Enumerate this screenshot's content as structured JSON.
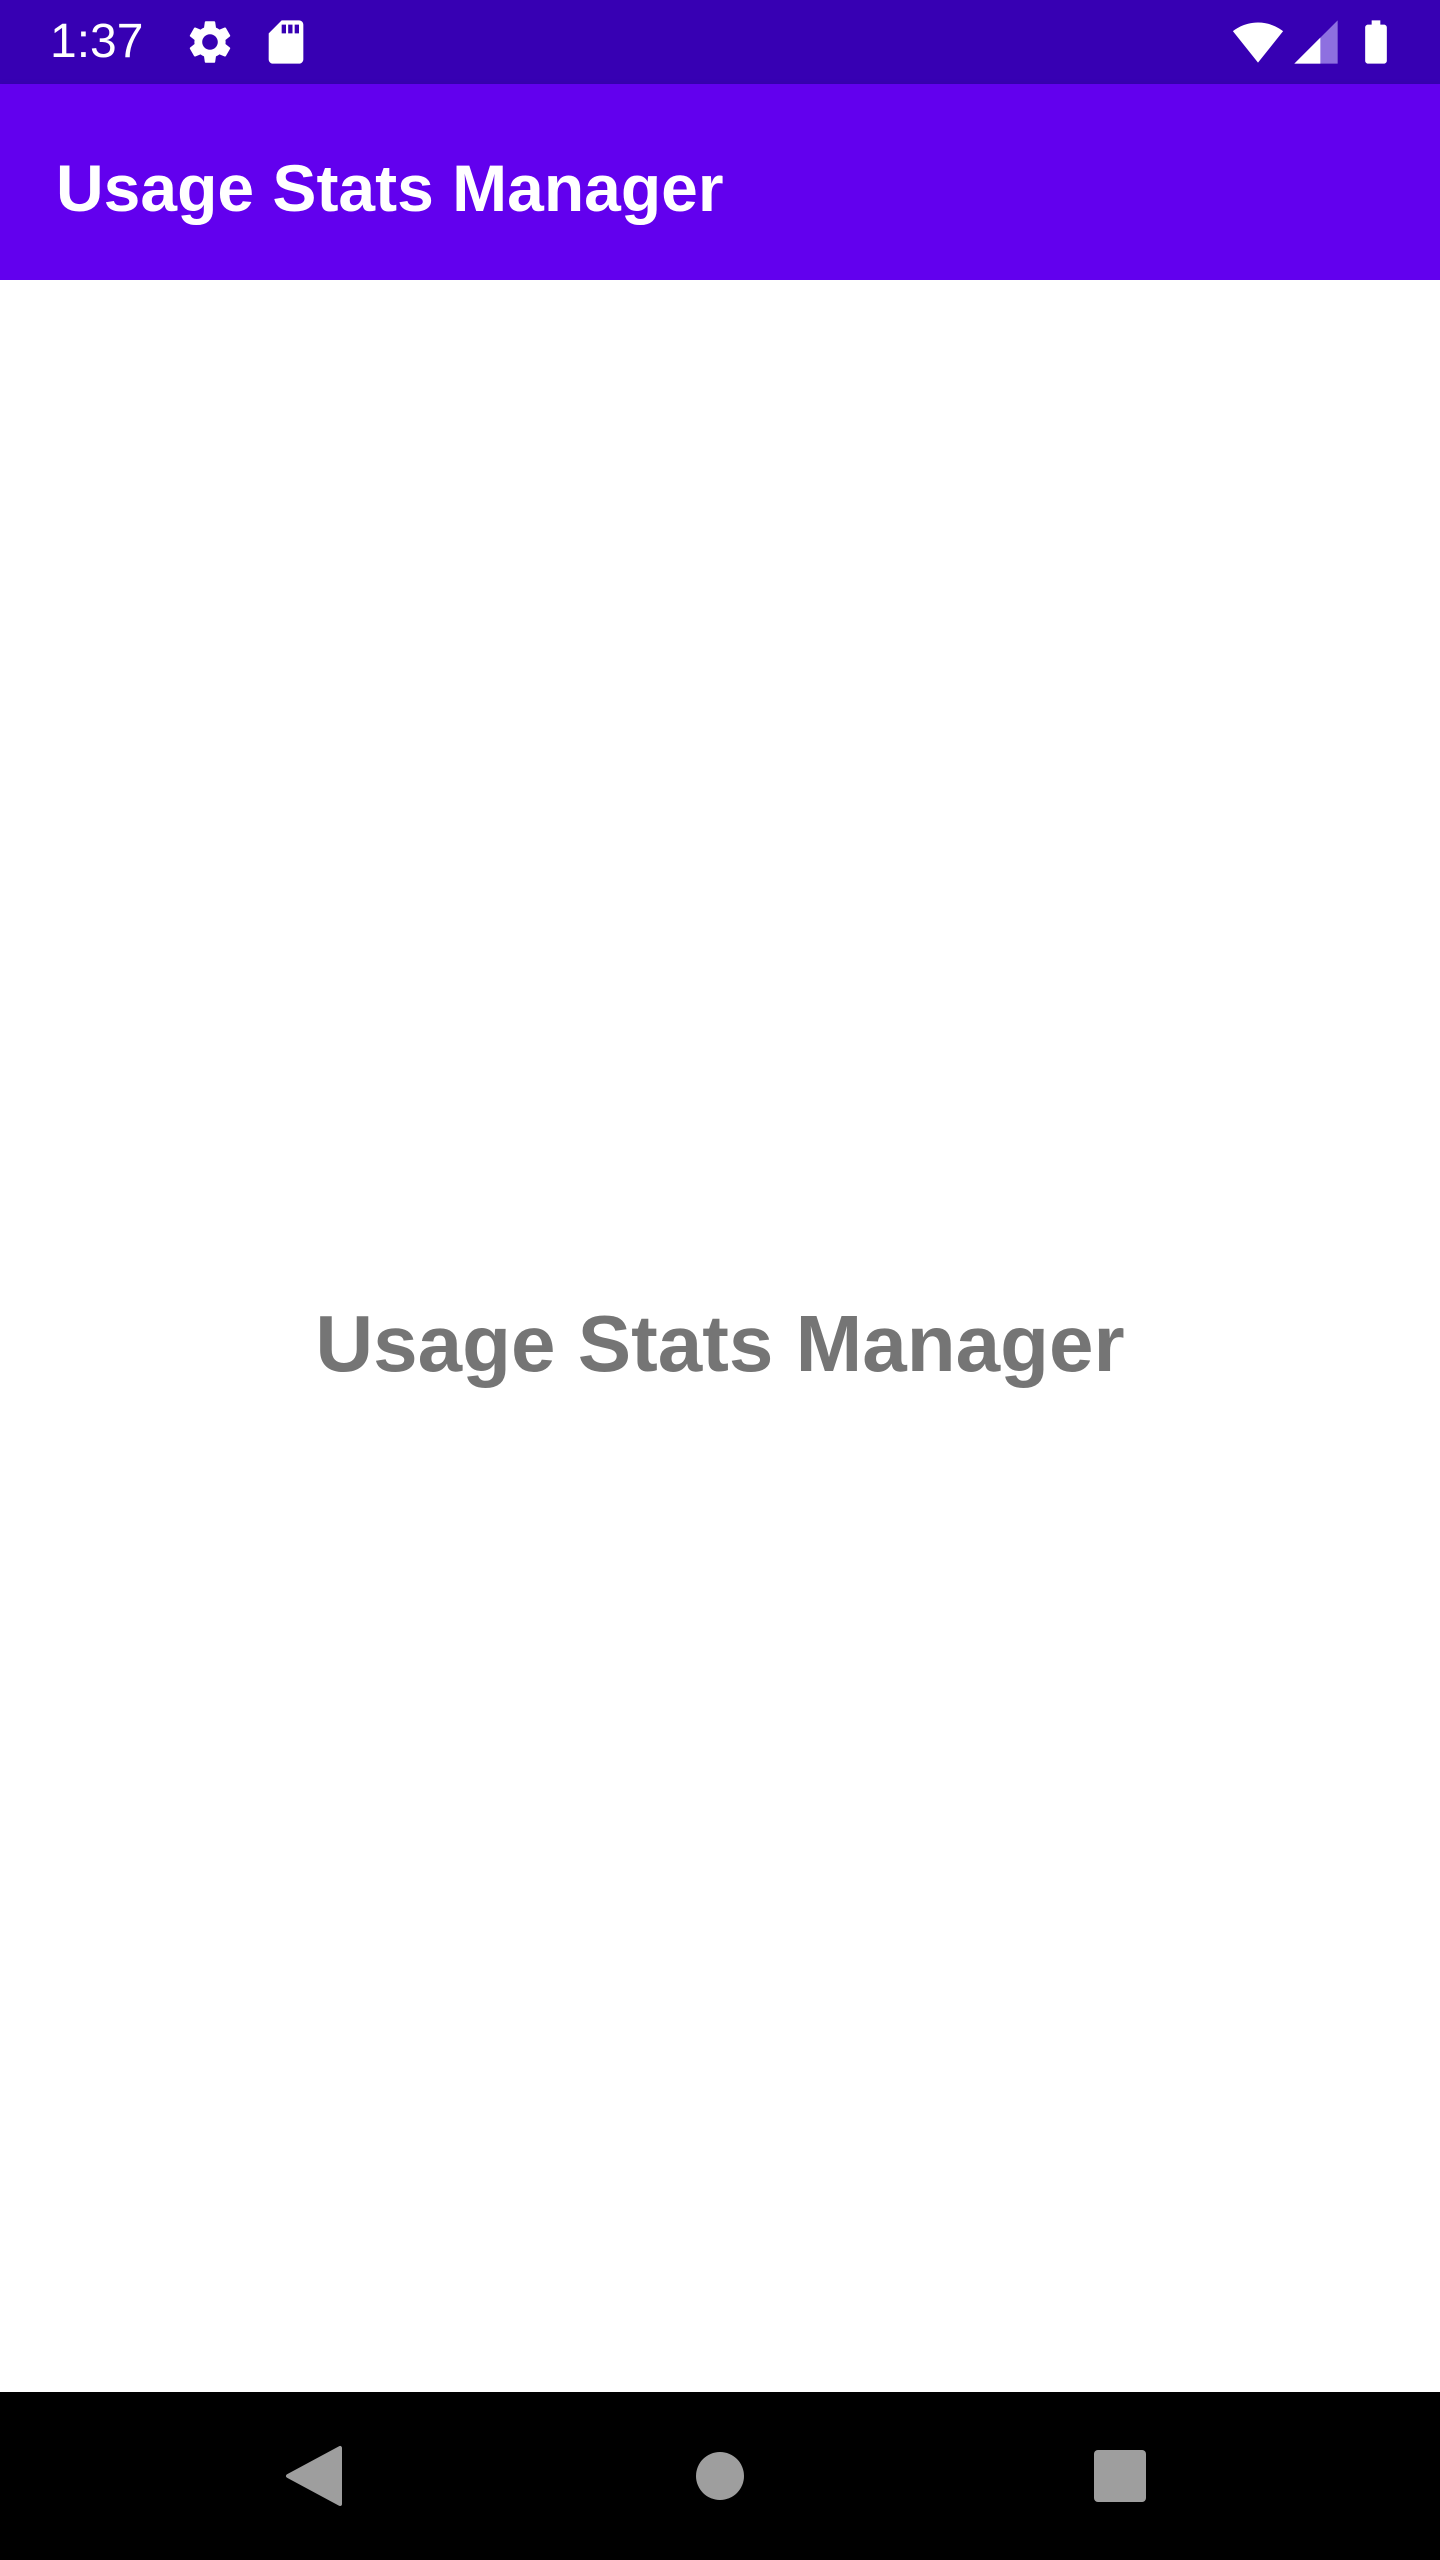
{
  "status_bar": {
    "time": "1:37",
    "icons": [
      "gear-icon",
      "sd-card-icon",
      "wifi-icon",
      "cellular-signal-icon",
      "battery-icon"
    ]
  },
  "app_bar": {
    "title": "Usage Stats Manager",
    "color": "#6200ee"
  },
  "main": {
    "center_label": "Usage Stats Manager"
  },
  "nav_bar": {
    "buttons": [
      "back-icon",
      "home-icon",
      "recents-icon"
    ]
  },
  "colors": {
    "status_bar": "#3700b3",
    "app_bar": "#6200ee",
    "center_text": "#757575"
  }
}
